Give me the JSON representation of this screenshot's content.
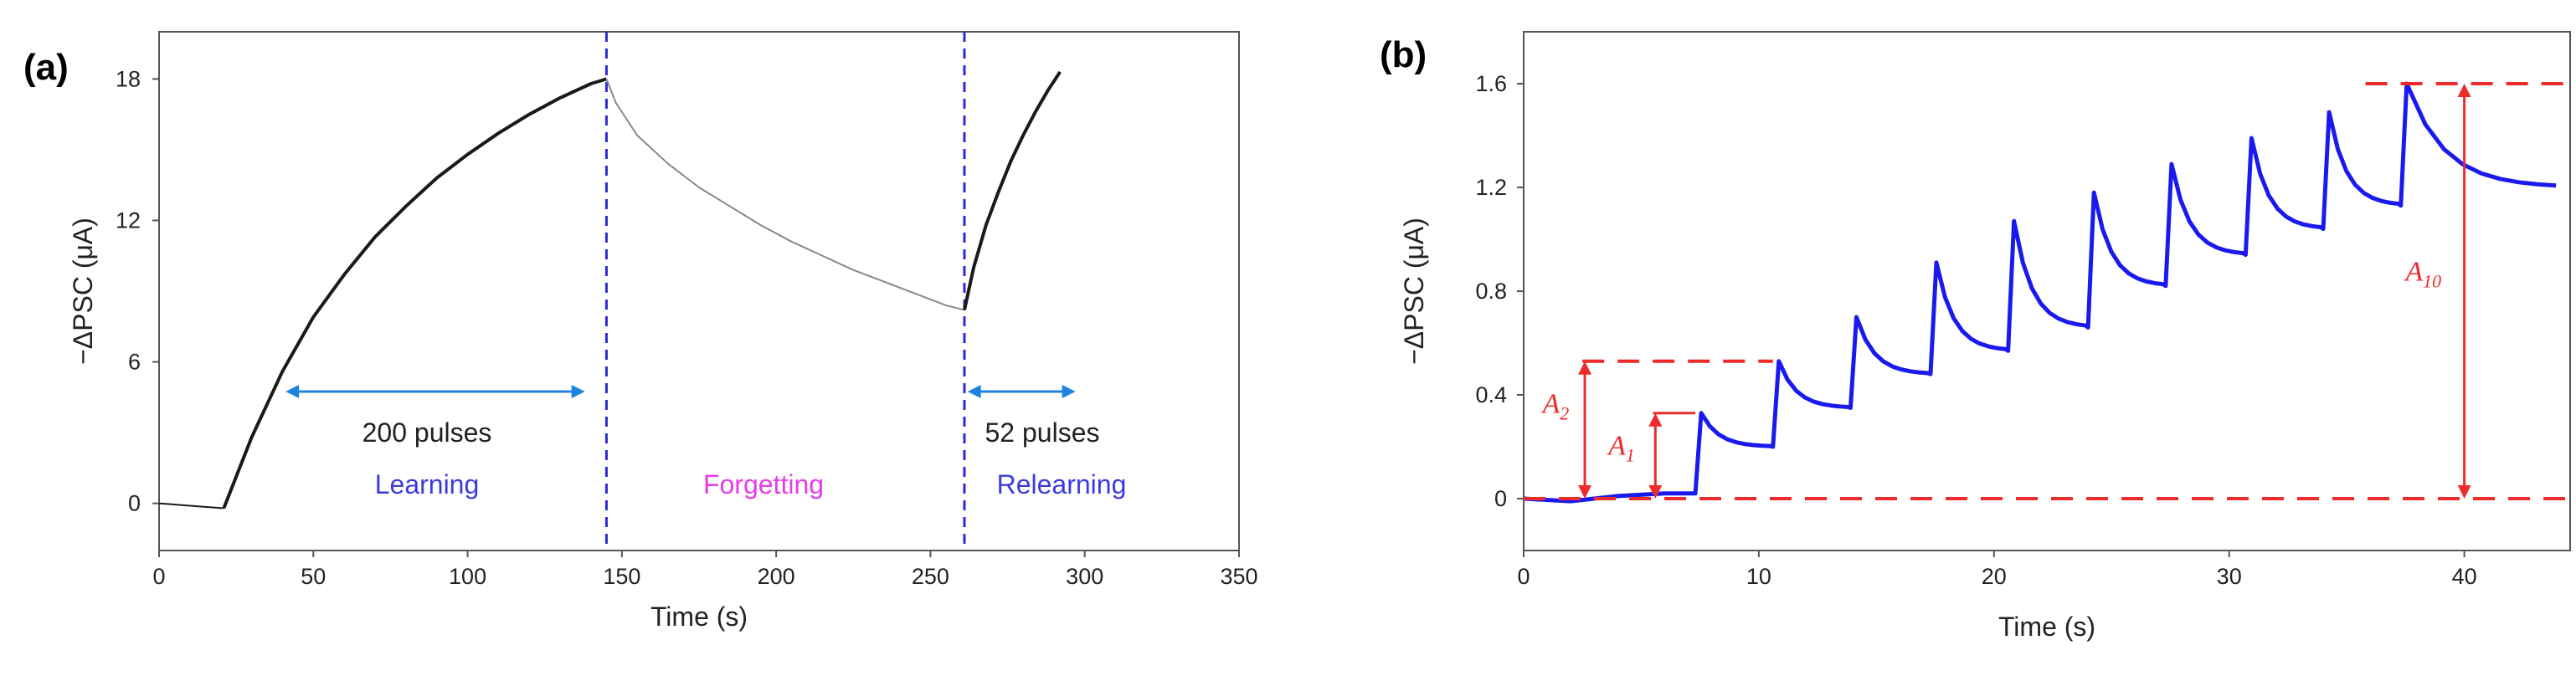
{
  "chart_data": [
    {
      "panel": "(a)",
      "type": "line",
      "xlabel": "Time (s)",
      "ylabel": "−ΔPSC (μA)",
      "xlim": [
        0,
        350
      ],
      "ylim": [
        -2,
        20
      ],
      "xticks": [
        0,
        50,
        100,
        150,
        200,
        250,
        300,
        350
      ],
      "yticks": [
        0,
        6,
        12,
        18
      ],
      "colors": {
        "learning": "#1a1a1a",
        "forgetting": "#888888",
        "relearning": "#1a1a1a",
        "dashed": "#2b2bd9",
        "arrow": "#1f82e0"
      },
      "series": [
        {
          "name": "baseline",
          "x": [
            0,
            5,
            10,
            15,
            20,
            21
          ],
          "values": [
            0,
            -0.05,
            -0.1,
            -0.15,
            -0.2,
            -0.2
          ]
        },
        {
          "name": "learning",
          "x": [
            21,
            30,
            40,
            50,
            60,
            70,
            80,
            90,
            100,
            110,
            120,
            130,
            140,
            145
          ],
          "values": [
            -0.2,
            2.8,
            5.6,
            7.9,
            9.7,
            11.3,
            12.6,
            13.8,
            14.8,
            15.7,
            16.5,
            17.2,
            17.8,
            18.0
          ]
        },
        {
          "name": "forgetting",
          "x": [
            145,
            148,
            155,
            165,
            175,
            185,
            195,
            205,
            215,
            225,
            235,
            245,
            255,
            261
          ],
          "values": [
            18.0,
            17.0,
            15.6,
            14.4,
            13.4,
            12.6,
            11.8,
            11.1,
            10.5,
            9.9,
            9.4,
            8.9,
            8.4,
            8.2
          ]
        },
        {
          "name": "relearning",
          "x": [
            261,
            264,
            268,
            272,
            276,
            280,
            284,
            288,
            292
          ],
          "values": [
            8.2,
            10.0,
            11.8,
            13.2,
            14.5,
            15.6,
            16.6,
            17.5,
            18.3
          ]
        }
      ],
      "vlines": [
        145,
        261
      ],
      "annotations": {
        "pulses_1": "200 pulses",
        "pulses_2": "52 pulses",
        "phase_1": "Learning",
        "phase_2": "Forgetting",
        "phase_3": "Relearning"
      },
      "phase_colors": {
        "learning": "#3b3be0",
        "forgetting": "#e83ce8",
        "relearning": "#3b3be0"
      }
    },
    {
      "panel": "(b)",
      "type": "line",
      "xlabel": "Time (s)",
      "ylabel": "−ΔPSC (μA)",
      "xlim": [
        0,
        44.5
      ],
      "ylim": [
        -0.2,
        1.8
      ],
      "xticks": [
        0,
        10,
        20,
        30,
        40
      ],
      "yticks": [
        0,
        0.4,
        0.8,
        1.2,
        1.6
      ],
      "ytick_labels": [
        "0",
        "0.4",
        "0.8",
        "1.2",
        "1.6"
      ],
      "colors": {
        "line": "#1a1aee",
        "red": "#ee2a2a"
      },
      "pulse_times": [
        7.3,
        10.6,
        13.9,
        17.3,
        20.6,
        24.0,
        27.3,
        30.7,
        34.0,
        37.3
      ],
      "pulse_peaks": [
        0.33,
        0.53,
        0.7,
        0.91,
        1.07,
        1.18,
        1.29,
        1.39,
        1.49,
        1.6
      ],
      "pulse_troughs": [
        0.2,
        0.35,
        0.48,
        0.57,
        0.66,
        0.82,
        0.94,
        1.04,
        1.13,
        1.2
      ],
      "start_x": 0,
      "end_x": 44,
      "baseline": 0,
      "annotations": {
        "A1_label": "A",
        "A1_sub": "1",
        "A2_label": "A",
        "A2_sub": "2",
        "A10_label": "A",
        "A10_sub": "10"
      }
    }
  ]
}
